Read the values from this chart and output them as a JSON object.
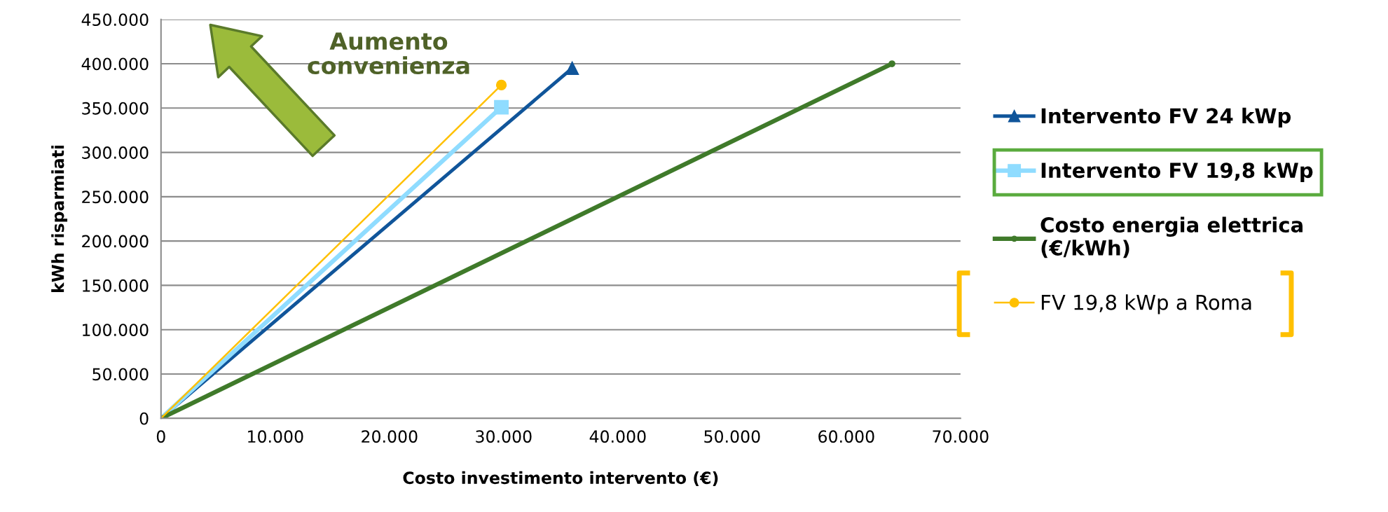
{
  "chart_data": {
    "type": "line",
    "xlabel": "Costo investimento intervento (€)",
    "ylabel": "kWh risparmiati",
    "xlim": [
      0,
      70000
    ],
    "xticks": [
      {
        "value": 0,
        "label": "0"
      },
      {
        "value": 10000,
        "label": "10.000"
      },
      {
        "value": 20000,
        "label": "20.000"
      },
      {
        "value": 30000,
        "label": "30.000"
      },
      {
        "value": 40000,
        "label": "40.000"
      },
      {
        "value": 50000,
        "label": "50.000"
      },
      {
        "value": 60000,
        "label": "60.000"
      },
      {
        "value": 70000,
        "label": "70.000"
      }
    ],
    "ylim": [
      0,
      450000
    ],
    "yticks": [
      {
        "value": 0,
        "label": "0"
      },
      {
        "value": 50000,
        "label": "50.000"
      },
      {
        "value": 100000,
        "label": "100.000"
      },
      {
        "value": 150000,
        "label": "150.000"
      },
      {
        "value": 200000,
        "label": "200.000"
      },
      {
        "value": 250000,
        "label": "250.000"
      },
      {
        "value": 300000,
        "label": "300.000"
      },
      {
        "value": 350000,
        "label": "350.000"
      },
      {
        "value": 400000,
        "label": "400.000"
      },
      {
        "value": 450000,
        "label": "450.000"
      }
    ],
    "grid": "y",
    "legend": "right",
    "series": [
      {
        "name": "Intervento FV 24 kWp",
        "color": "#10559a",
        "marker": "triangle",
        "x": [
          0,
          36000
        ],
        "values": [
          0,
          395000
        ]
      },
      {
        "name": "Intervento FV 19,8 kWp",
        "color": "#8fdcff",
        "marker": "square",
        "x": [
          0,
          29800
        ],
        "values": [
          0,
          351000
        ]
      },
      {
        "name": "Costo energia elettrica (€/kWh)",
        "color": "#3f7a2a",
        "marker": "circle",
        "x": [
          0,
          64000
        ],
        "values": [
          0,
          400000
        ]
      },
      {
        "name": "FV 19,8 kWp a Roma",
        "color": "#ffc000",
        "marker": "circle",
        "x": [
          0,
          29800
        ],
        "values": [
          0,
          376000
        ]
      }
    ],
    "annotations": [
      "Aumento convenienza"
    ]
  }
}
